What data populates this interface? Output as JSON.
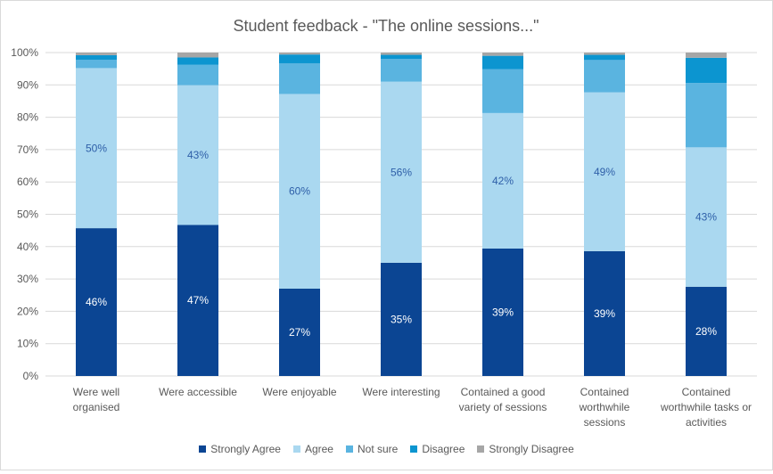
{
  "chart_data": {
    "type": "bar",
    "stacked": true,
    "title": "Student feedback - \"The online sessions...\"",
    "xlabel": "",
    "ylabel": "",
    "ylim": [
      0,
      100
    ],
    "yticks": [
      "0%",
      "10%",
      "20%",
      "30%",
      "40%",
      "50%",
      "60%",
      "70%",
      "80%",
      "90%",
      "100%"
    ],
    "grid": true,
    "legend_position": "bottom",
    "categories": [
      [
        "Were well",
        "organised"
      ],
      [
        "Were accessible"
      ],
      [
        "Were enjoyable"
      ],
      [
        "Were interesting"
      ],
      [
        "Contained a good",
        "variety of sessions"
      ],
      [
        "Contained",
        "worthwhile",
        "sessions"
      ],
      [
        "Contained",
        "worthwhile tasks or",
        "activities"
      ]
    ],
    "series": [
      {
        "name": "Strongly Agree",
        "color": "#0b4593",
        "label_color": "#ffffff",
        "values": [
          45.7,
          46.7,
          27.0,
          35.0,
          39.4,
          38.6,
          27.6
        ],
        "labels": [
          "46%",
          "47%",
          "27%",
          "35%",
          "39%",
          "39%",
          "28%"
        ]
      },
      {
        "name": "Agree",
        "color": "#aad8f0",
        "label_color": "#2e5fa8",
        "values": [
          49.5,
          43.2,
          60.2,
          56.0,
          41.9,
          49.1,
          43.1
        ],
        "labels": [
          "50%",
          "43%",
          "60%",
          "56%",
          "42%",
          "49%",
          "43%"
        ]
      },
      {
        "name": "Not sure",
        "color": "#5ab4e0",
        "label_color": "#ffffff",
        "values": [
          2.6,
          6.3,
          9.5,
          7.0,
          13.6,
          10.0,
          19.9
        ],
        "labels": [
          "",
          "",
          "",
          "",
          "",
          "",
          ""
        ]
      },
      {
        "name": "Disagree",
        "color": "#0c95d0",
        "label_color": "#ffffff",
        "values": [
          1.4,
          2.3,
          2.7,
          1.3,
          4.1,
          1.6,
          7.8
        ],
        "labels": [
          "",
          "",
          "",
          "",
          "",
          "",
          ""
        ]
      },
      {
        "name": "Strongly Disagree",
        "color": "#a6a6a6",
        "label_color": "#ffffff",
        "values": [
          0.8,
          1.5,
          0.6,
          0.7,
          1.0,
          0.7,
          1.6
        ],
        "labels": [
          "",
          "",
          "",
          "",
          "",
          "",
          ""
        ]
      }
    ]
  }
}
